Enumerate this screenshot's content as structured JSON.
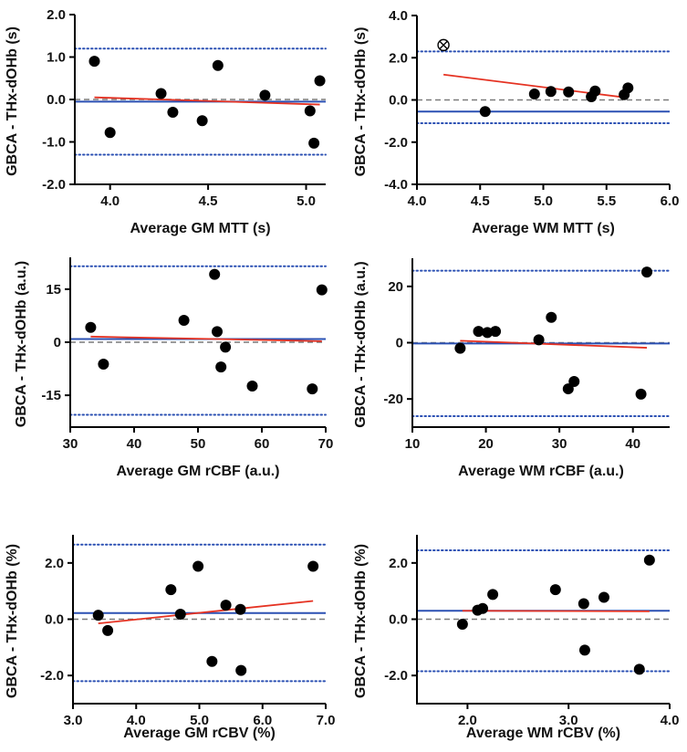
{
  "chart_data": [
    {
      "type": "scatter",
      "xlabel": "Average GM MTT (s)",
      "ylabel": "GBCA - THx-dOHb (s)",
      "xlim": [
        3.82,
        5.1
      ],
      "ylim": [
        -2.0,
        2.0
      ],
      "xticks": [
        {
          "v": 4.0,
          "label": "4.0"
        },
        {
          "v": 4.5,
          "label": "4.5"
        },
        {
          "v": 5.0,
          "label": "5.0"
        }
      ],
      "yticks": [
        {
          "v": 2.0,
          "label": "2.0"
        },
        {
          "v": 1.0,
          "label": "1.0"
        },
        {
          "v": 0.0,
          "label": "0.0"
        },
        {
          "v": -1.0,
          "label": "-1.0"
        },
        {
          "v": -2.0,
          "label": "-2.0"
        }
      ],
      "points": [
        [
          3.92,
          0.9
        ],
        [
          4.0,
          -0.78
        ],
        [
          4.26,
          0.14
        ],
        [
          4.32,
          -0.3
        ],
        [
          4.47,
          -0.5
        ],
        [
          4.55,
          0.8
        ],
        [
          4.79,
          0.1
        ],
        [
          5.02,
          -0.27
        ],
        [
          5.04,
          -1.03
        ],
        [
          5.07,
          0.44
        ]
      ],
      "excluded_points": [],
      "mean_bias": -0.05,
      "loa_upper": 1.2,
      "loa_lower": -1.3,
      "zero_line": 0,
      "regression": {
        "x": [
          3.92,
          5.07
        ],
        "y": [
          0.05,
          -0.12
        ]
      }
    },
    {
      "type": "scatter",
      "xlabel": "Average WM MTT (s)",
      "ylabel": "GBCA - THx-dOHb (s)",
      "xlim": [
        4.0,
        6.0
      ],
      "ylim": [
        -4.0,
        4.0
      ],
      "xticks": [
        {
          "v": 4.0,
          "label": "4.0"
        },
        {
          "v": 4.5,
          "label": "4.5"
        },
        {
          "v": 5.0,
          "label": "5.0"
        },
        {
          "v": 5.5,
          "label": "5.5"
        },
        {
          "v": 6.0,
          "label": "6.0"
        }
      ],
      "yticks": [
        {
          "v": 4.0,
          "label": "4.0"
        },
        {
          "v": 2.0,
          "label": "2.0"
        },
        {
          "v": 0.0,
          "label": "0.0"
        },
        {
          "v": -2.0,
          "label": "-2.0"
        },
        {
          "v": -4.0,
          "label": "-4.0"
        }
      ],
      "points": [
        [
          4.54,
          -0.55
        ],
        [
          4.93,
          0.28
        ],
        [
          5.06,
          0.4
        ],
        [
          5.2,
          0.38
        ],
        [
          5.38,
          0.15
        ],
        [
          5.41,
          0.42
        ],
        [
          5.64,
          0.25
        ],
        [
          5.67,
          0.57
        ]
      ],
      "excluded_points": [
        [
          4.21,
          2.6
        ]
      ],
      "mean_bias": -0.55,
      "loa_upper": 2.3,
      "loa_lower": -1.1,
      "zero_line": 0,
      "regression": {
        "x": [
          4.21,
          5.67
        ],
        "y": [
          1.2,
          0.1
        ]
      }
    },
    {
      "type": "scatter",
      "xlabel": "Average GM rCBF (a.u.)",
      "ylabel": "GBCA - THx-dOHb (a.u.)",
      "xlim": [
        30,
        70
      ],
      "ylim": [
        -24,
        24
      ],
      "xticks": [
        {
          "v": 30,
          "label": "30"
        },
        {
          "v": 40,
          "label": "40"
        },
        {
          "v": 50,
          "label": "50"
        },
        {
          "v": 60,
          "label": "60"
        },
        {
          "v": 70,
          "label": "70"
        }
      ],
      "yticks": [
        {
          "v": 15,
          "label": "15"
        },
        {
          "v": 0,
          "label": "0"
        },
        {
          "v": -15,
          "label": "-15"
        }
      ],
      "points": [
        [
          33.2,
          4.2
        ],
        [
          35.2,
          -6.2
        ],
        [
          47.8,
          6.2
        ],
        [
          52.6,
          19.2
        ],
        [
          53.0,
          3.0
        ],
        [
          53.6,
          -7.0
        ],
        [
          54.3,
          -1.4
        ],
        [
          58.5,
          -12.4
        ],
        [
          67.9,
          -13.2
        ],
        [
          69.4,
          14.8
        ]
      ],
      "excluded_points": [],
      "mean_bias": 0.9,
      "loa_upper": 21.5,
      "loa_lower": -20.5,
      "zero_line": 0,
      "regression": {
        "x": [
          33.2,
          69.4
        ],
        "y": [
          1.6,
          0.3
        ]
      }
    },
    {
      "type": "scatter",
      "xlabel": "Average WM rCBF (a.u.)",
      "ylabel": "GBCA - THx-dOHb (a.u.)",
      "xlim": [
        10,
        45
      ],
      "ylim": [
        -30,
        30
      ],
      "xticks": [
        {
          "v": 10,
          "label": "10"
        },
        {
          "v": 20,
          "label": "20"
        },
        {
          "v": 30,
          "label": "30"
        },
        {
          "v": 40,
          "label": "40"
        }
      ],
      "yticks": [
        {
          "v": 20,
          "label": "20"
        },
        {
          "v": 0,
          "label": "0"
        },
        {
          "v": -20,
          "label": "-20"
        }
      ],
      "points": [
        [
          16.5,
          -2.0
        ],
        [
          19.0,
          4.0
        ],
        [
          20.2,
          3.6
        ],
        [
          21.3,
          4.0
        ],
        [
          27.2,
          1.0
        ],
        [
          28.9,
          9.0
        ],
        [
          31.2,
          -16.4
        ],
        [
          32.0,
          -13.8
        ],
        [
          41.1,
          -18.3
        ],
        [
          41.9,
          25.1
        ]
      ],
      "excluded_points": [],
      "mean_bias": -0.3,
      "loa_upper": 25.6,
      "loa_lower": -26.1,
      "zero_line": 0,
      "regression": {
        "x": [
          16.5,
          41.9
        ],
        "y": [
          0.7,
          -1.8
        ]
      }
    },
    {
      "type": "scatter",
      "xlabel": "Average GM rCBV (%)",
      "ylabel": "GBCA - THx-dOHb (%)",
      "xlim": [
        3.0,
        7.0
      ],
      "ylim": [
        -3.0,
        3.0
      ],
      "xticks": [
        {
          "v": 3.0,
          "label": "3.0"
        },
        {
          "v": 4.0,
          "label": "4.0"
        },
        {
          "v": 5.0,
          "label": "5.0"
        },
        {
          "v": 6.0,
          "label": "6.0"
        },
        {
          "v": 7.0,
          "label": "7.0"
        }
      ],
      "yticks": [
        {
          "v": 2.0,
          "label": "2.0"
        },
        {
          "v": 0.0,
          "label": "0.0"
        },
        {
          "v": -2.0,
          "label": "-2.0"
        }
      ],
      "points": [
        [
          3.4,
          0.14
        ],
        [
          3.55,
          -0.4
        ],
        [
          4.55,
          1.05
        ],
        [
          4.7,
          0.18
        ],
        [
          4.98,
          1.88
        ],
        [
          5.2,
          -1.5
        ],
        [
          5.42,
          0.5
        ],
        [
          5.65,
          0.35
        ],
        [
          5.66,
          -1.82
        ],
        [
          6.8,
          1.88
        ]
      ],
      "excluded_points": [],
      "mean_bias": 0.22,
      "loa_upper": 2.65,
      "loa_lower": -2.2,
      "zero_line": 0,
      "regression": {
        "x": [
          3.4,
          6.8
        ],
        "y": [
          -0.15,
          0.65
        ]
      }
    },
    {
      "type": "scatter",
      "xlabel": "Average WM rCBV (%)",
      "ylabel": "GBCA - THx-dOHb (%)",
      "xlim": [
        1.5,
        4.0
      ],
      "ylim": [
        -3.0,
        3.0
      ],
      "xticks": [
        {
          "v": 2.0,
          "label": "2.0"
        },
        {
          "v": 3.0,
          "label": "3.0"
        },
        {
          "v": 4.0,
          "label": "4.0"
        }
      ],
      "yticks": [
        {
          "v": 2.0,
          "label": "2.0"
        },
        {
          "v": 0.0,
          "label": "0.0"
        },
        {
          "v": -2.0,
          "label": "-2.0"
        }
      ],
      "points": [
        [
          1.95,
          -0.18
        ],
        [
          2.1,
          0.32
        ],
        [
          2.15,
          0.38
        ],
        [
          2.25,
          0.88
        ],
        [
          2.87,
          1.05
        ],
        [
          3.15,
          0.55
        ],
        [
          3.16,
          -1.1
        ],
        [
          3.35,
          0.78
        ],
        [
          3.7,
          -1.78
        ],
        [
          3.8,
          2.1
        ]
      ],
      "excluded_points": [],
      "mean_bias": 0.3,
      "loa_upper": 2.45,
      "loa_lower": -1.85,
      "zero_line": 0,
      "regression": {
        "x": [
          1.95,
          3.8
        ],
        "y": [
          0.3,
          0.28
        ]
      }
    }
  ],
  "colors": {
    "points": "#000000",
    "mean_line": "#2b50b3",
    "loa_line": "#2b50b3",
    "zero_line": "#7a7a7a",
    "regression": "#e53222",
    "axes": "#000000"
  }
}
